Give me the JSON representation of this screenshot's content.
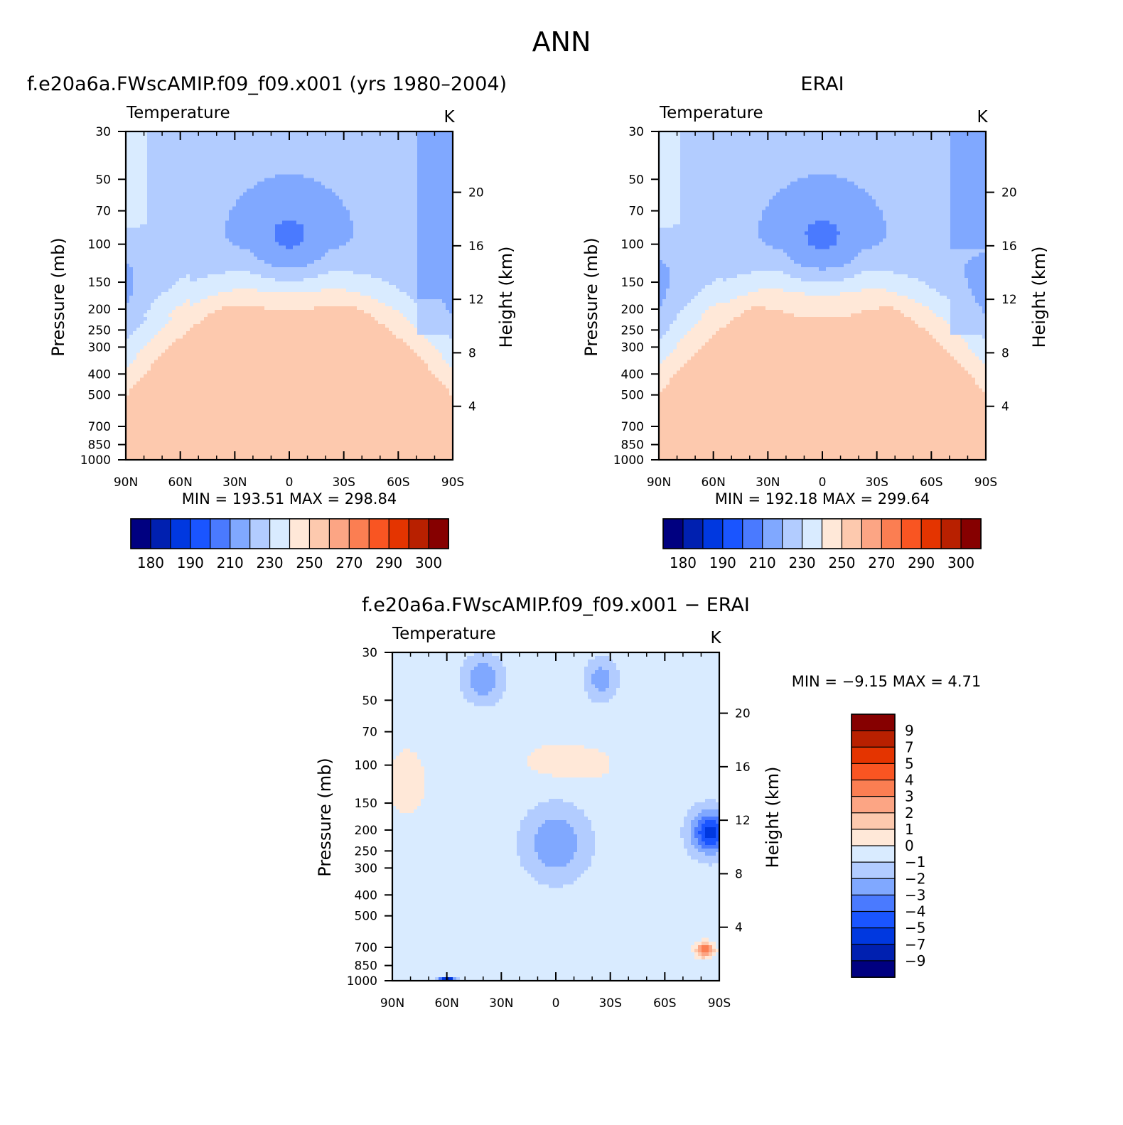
{
  "figure": {
    "title": "ANN"
  },
  "colors": {
    "temp_scale": [
      "#000080",
      "#0020b0",
      "#0038e0",
      "#1a55ff",
      "#4a7aff",
      "#80a8ff",
      "#b2ccff",
      "#d9ebff",
      "#ffe8d8",
      "#fdc9ae",
      "#fca584",
      "#fb7e52",
      "#f95522",
      "#e43400",
      "#b82000",
      "#860000"
    ],
    "diff_scale": [
      "#000080",
      "#0020b0",
      "#0038e0",
      "#1a55ff",
      "#4a7aff",
      "#80a8ff",
      "#b2ccff",
      "#d9ebff",
      "#ffe8d8",
      "#fdc9ae",
      "#fca584",
      "#fb7e52",
      "#f95522",
      "#e43400",
      "#b82000",
      "#860000"
    ]
  },
  "chart_data": [
    {
      "id": "model",
      "type": "heatmap",
      "title": "f.e20a6a.FWscAMIP.f09_f09.x001 (yrs 1980–2004)",
      "variable": "Temperature",
      "units": "K",
      "xlabel": "",
      "ylabel": "Pressure (mb)",
      "ylabel_right": "Height (km)",
      "x_ticks": [
        "90N",
        "60N",
        "30N",
        "0",
        "30S",
        "60S",
        "90S"
      ],
      "y_ticks": [
        "30",
        "50",
        "70",
        "100",
        "150",
        "200",
        "250",
        "300",
        "400",
        "500",
        "700",
        "850",
        "1000"
      ],
      "y_ticks_right": [
        "20",
        "16",
        "12",
        "8",
        "4"
      ],
      "x_range": [
        90,
        -90
      ],
      "y_range_mb": [
        1000,
        30
      ],
      "stats": "MIN = 193.51 MAX = 298.84",
      "min": 193.51,
      "max": 298.84,
      "field": {
        "min": 193.51,
        "max": 298.84,
        "trop_max": 298.84,
        "trop_cold": 193.51,
        "polar_south": 203,
        "polar_north": 218,
        "north_bulge": 3,
        "pole_band": 1
      },
      "colorbar": {
        "orientation": "horizontal",
        "levels": [
          175,
          180,
          185,
          190,
          200,
          210,
          220,
          230,
          240,
          250,
          260,
          270,
          280,
          290,
          295,
          300
        ],
        "labels": [
          "180",
          "190",
          "210",
          "230",
          "250",
          "270",
          "290",
          "300"
        ]
      }
    },
    {
      "id": "obs",
      "type": "heatmap",
      "title": "ERAI",
      "variable": "Temperature",
      "units": "K",
      "xlabel": "",
      "ylabel": "Pressure (mb)",
      "ylabel_right": "Height (km)",
      "x_ticks": [
        "90N",
        "60N",
        "30N",
        "0",
        "30S",
        "60S",
        "90S"
      ],
      "y_ticks": [
        "30",
        "50",
        "70",
        "100",
        "150",
        "200",
        "250",
        "300",
        "400",
        "500",
        "700",
        "850",
        "1000"
      ],
      "y_ticks_right": [
        "20",
        "16",
        "12",
        "8",
        "4"
      ],
      "x_range": [
        90,
        -90
      ],
      "y_range_mb": [
        1000,
        30
      ],
      "stats": "MIN = 192.18 MAX = 299.64",
      "min": 192.18,
      "max": 299.64,
      "field": {
        "min": 192.18,
        "max": 299.64,
        "trop_max": 299.64,
        "trop_cold": 192.18,
        "polar_south": 206,
        "polar_north": 220,
        "north_bulge": 2,
        "pole_band": 1
      },
      "colorbar": {
        "orientation": "horizontal",
        "levels": [
          175,
          180,
          185,
          190,
          200,
          210,
          220,
          230,
          240,
          250,
          260,
          270,
          280,
          290,
          295,
          300
        ],
        "labels": [
          "180",
          "190",
          "210",
          "230",
          "250",
          "270",
          "290",
          "300"
        ]
      }
    },
    {
      "id": "diff",
      "type": "heatmap",
      "title": "f.e20a6a.FWscAMIP.f09_f09.x001 − ERAI",
      "variable": "Temperature",
      "units": "K",
      "xlabel": "",
      "ylabel": "Pressure (mb)",
      "ylabel_right": "Height (km)",
      "x_ticks": [
        "90N",
        "60N",
        "30N",
        "0",
        "30S",
        "60S",
        "90S"
      ],
      "y_ticks": [
        "30",
        "50",
        "70",
        "100",
        "150",
        "200",
        "250",
        "300",
        "400",
        "500",
        "700",
        "850",
        "1000"
      ],
      "y_ticks_right": [
        "20",
        "16",
        "12",
        "8",
        "4"
      ],
      "x_range": [
        90,
        -90
      ],
      "y_range_mb": [
        1000,
        30
      ],
      "stats": "MIN = −9.15 MAX = 4.71",
      "min": -9.15,
      "max": 4.71,
      "features": [
        {
          "lat": 82,
          "p": 120,
          "v": 1.6,
          "slat": 10,
          "slogp": 0.35
        },
        {
          "lat": 0,
          "p": 95,
          "v": 1.3,
          "slat": 18,
          "slogp": 0.18
        },
        {
          "lat": -20,
          "p": 100,
          "v": 0.9,
          "slat": 14,
          "slogp": 0.18
        },
        {
          "lat": 0,
          "p": 230,
          "v": -2.4,
          "slat": 16,
          "slogp": 0.35
        },
        {
          "lat": -85,
          "p": 205,
          "v": -4.8,
          "slat": 10,
          "slogp": 0.22
        },
        {
          "lat": 40,
          "p": 40,
          "v": -2.4,
          "slat": 10,
          "slogp": 0.22
        },
        {
          "lat": -25,
          "p": 40,
          "v": -2.0,
          "slat": 8,
          "slogp": 0.2
        },
        {
          "lat": -82,
          "p": 720,
          "v": 4.6,
          "slat": 5,
          "slogp": 0.08
        },
        {
          "lat": 60,
          "p": 990,
          "v": -8.5,
          "slat": 4,
          "slogp": 0.02
        }
      ],
      "colorbar": {
        "orientation": "vertical",
        "levels": [
          -9,
          -7,
          -5,
          -4,
          -3,
          -2,
          -1,
          0,
          1,
          2,
          3,
          4,
          5,
          7,
          9
        ],
        "labels": [
          "9",
          "7",
          "5",
          "4",
          "3",
          "2",
          "1",
          "0",
          "−1",
          "−2",
          "−3",
          "−4",
          "−5",
          "−7",
          "−9"
        ]
      }
    }
  ]
}
